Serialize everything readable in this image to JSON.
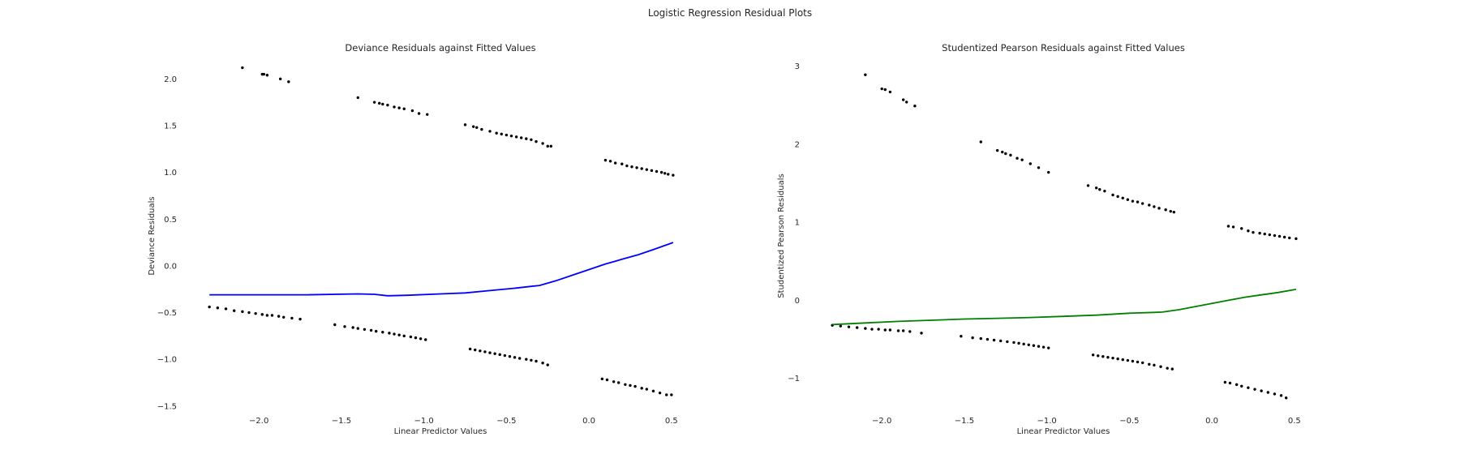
{
  "suptitle": "Logistic Regression Residual Plots",
  "chart_data": [
    {
      "type": "scatter",
      "title": "Deviance Residuals against Fitted Values",
      "xlabel": "Linear Predictor Values",
      "ylabel": "Deviance Residuals",
      "xlim": [
        -2.35,
        0.55
      ],
      "ylim": [
        -1.58,
        2.22
      ],
      "xticks": [
        -2.0,
        -1.5,
        -1.0,
        -0.5,
        0.0,
        0.5
      ],
      "xticklabels": [
        "−2.0",
        "−1.5",
        "−1.0",
        "−0.5",
        "0.0",
        "0.5"
      ],
      "yticks": [
        -1.5,
        -1.0,
        -0.5,
        0.0,
        0.5,
        1.0,
        1.5,
        2.0
      ],
      "yticklabels": [
        "−1.5",
        "−1.0",
        "−0.5",
        "0.0",
        "0.5",
        "1.0",
        "1.5",
        "2.0"
      ],
      "grid": false,
      "point_color": "#000000",
      "line_color": "#0000ff",
      "points": [
        [
          -2.1,
          2.12
        ],
        [
          -1.98,
          2.05
        ],
        [
          -1.97,
          2.05
        ],
        [
          -1.95,
          2.04
        ],
        [
          -1.87,
          2.0
        ],
        [
          -1.82,
          1.97
        ],
        [
          -1.4,
          1.8
        ],
        [
          -1.3,
          1.75
        ],
        [
          -1.27,
          1.74
        ],
        [
          -1.25,
          1.73
        ],
        [
          -1.22,
          1.72
        ],
        [
          -1.18,
          1.7
        ],
        [
          -1.15,
          1.69
        ],
        [
          -1.12,
          1.68
        ],
        [
          -1.07,
          1.66
        ],
        [
          -1.03,
          1.63
        ],
        [
          -0.98,
          1.62
        ],
        [
          -0.75,
          1.51
        ],
        [
          -0.7,
          1.49
        ],
        [
          -0.68,
          1.48
        ],
        [
          -0.65,
          1.46
        ],
        [
          -0.6,
          1.44
        ],
        [
          -0.56,
          1.42
        ],
        [
          -0.53,
          1.41
        ],
        [
          -0.5,
          1.4
        ],
        [
          -0.47,
          1.39
        ],
        [
          -0.44,
          1.38
        ],
        [
          -0.41,
          1.37
        ],
        [
          -0.38,
          1.36
        ],
        [
          -0.35,
          1.35
        ],
        [
          -0.32,
          1.33
        ],
        [
          -0.28,
          1.31
        ],
        [
          -0.25,
          1.28
        ],
        [
          -0.23,
          1.28
        ],
        [
          0.1,
          1.13
        ],
        [
          0.13,
          1.12
        ],
        [
          0.16,
          1.1
        ],
        [
          0.2,
          1.09
        ],
        [
          0.23,
          1.07
        ],
        [
          0.26,
          1.06
        ],
        [
          0.29,
          1.05
        ],
        [
          0.32,
          1.04
        ],
        [
          0.35,
          1.03
        ],
        [
          0.38,
          1.02
        ],
        [
          0.41,
          1.01
        ],
        [
          0.44,
          1.0
        ],
        [
          0.46,
          0.99
        ],
        [
          0.48,
          0.98
        ],
        [
          0.51,
          0.97
        ],
        [
          -2.3,
          -0.44
        ],
        [
          -2.25,
          -0.45
        ],
        [
          -2.2,
          -0.46
        ],
        [
          -2.15,
          -0.48
        ],
        [
          -2.1,
          -0.49
        ],
        [
          -2.06,
          -0.5
        ],
        [
          -2.02,
          -0.51
        ],
        [
          -1.98,
          -0.52
        ],
        [
          -1.95,
          -0.53
        ],
        [
          -1.92,
          -0.53
        ],
        [
          -1.88,
          -0.54
        ],
        [
          -1.85,
          -0.55
        ],
        [
          -1.8,
          -0.56
        ],
        [
          -1.75,
          -0.57
        ],
        [
          -1.54,
          -0.63
        ],
        [
          -1.48,
          -0.65
        ],
        [
          -1.43,
          -0.66
        ],
        [
          -1.4,
          -0.67
        ],
        [
          -1.36,
          -0.68
        ],
        [
          -1.32,
          -0.69
        ],
        [
          -1.29,
          -0.7
        ],
        [
          -1.25,
          -0.71
        ],
        [
          -1.21,
          -0.72
        ],
        [
          -1.18,
          -0.73
        ],
        [
          -1.15,
          -0.74
        ],
        [
          -1.12,
          -0.75
        ],
        [
          -1.08,
          -0.76
        ],
        [
          -1.05,
          -0.77
        ],
        [
          -1.02,
          -0.78
        ],
        [
          -0.99,
          -0.79
        ],
        [
          -0.72,
          -0.89
        ],
        [
          -0.69,
          -0.9
        ],
        [
          -0.66,
          -0.91
        ],
        [
          -0.63,
          -0.92
        ],
        [
          -0.6,
          -0.93
        ],
        [
          -0.57,
          -0.94
        ],
        [
          -0.54,
          -0.95
        ],
        [
          -0.51,
          -0.96
        ],
        [
          -0.48,
          -0.97
        ],
        [
          -0.45,
          -0.98
        ],
        [
          -0.42,
          -0.99
        ],
        [
          -0.38,
          -1.0
        ],
        [
          -0.35,
          -1.01
        ],
        [
          -0.32,
          -1.02
        ],
        [
          -0.28,
          -1.04
        ],
        [
          -0.25,
          -1.06
        ],
        [
          0.08,
          -1.21
        ],
        [
          0.11,
          -1.22
        ],
        [
          0.15,
          -1.24
        ],
        [
          0.18,
          -1.25
        ],
        [
          0.22,
          -1.27
        ],
        [
          0.25,
          -1.28
        ],
        [
          0.28,
          -1.29
        ],
        [
          0.32,
          -1.31
        ],
        [
          0.35,
          -1.32
        ],
        [
          0.39,
          -1.34
        ],
        [
          0.43,
          -1.36
        ],
        [
          0.47,
          -1.38
        ],
        [
          0.5,
          -1.38
        ]
      ],
      "smooth_line": [
        [
          -2.3,
          -0.31
        ],
        [
          -2.0,
          -0.31
        ],
        [
          -1.7,
          -0.31
        ],
        [
          -1.4,
          -0.3
        ],
        [
          -1.3,
          -0.305
        ],
        [
          -1.22,
          -0.32
        ],
        [
          -1.1,
          -0.315
        ],
        [
          -0.9,
          -0.3
        ],
        [
          -0.75,
          -0.29
        ],
        [
          -0.6,
          -0.265
        ],
        [
          -0.45,
          -0.24
        ],
        [
          -0.35,
          -0.22
        ],
        [
          -0.3,
          -0.21
        ],
        [
          -0.2,
          -0.16
        ],
        [
          -0.1,
          -0.1
        ],
        [
          0.0,
          -0.04
        ],
        [
          0.1,
          0.02
        ],
        [
          0.2,
          0.07
        ],
        [
          0.3,
          0.12
        ],
        [
          0.4,
          0.18
        ],
        [
          0.51,
          0.25
        ]
      ]
    },
    {
      "type": "scatter",
      "title": "Studentized Pearson Residuals against Fitted Values",
      "xlabel": "Linear Predictor Values",
      "ylabel": "Studentized Pearson Residuals",
      "xlim": [
        -2.35,
        0.55
      ],
      "ylim": [
        -1.45,
        3.1
      ],
      "xticks": [
        -2.0,
        -1.5,
        -1.0,
        -0.5,
        0.0,
        0.5
      ],
      "xticklabels": [
        "−2.0",
        "−1.5",
        "−1.0",
        "−0.5",
        "0.0",
        "0.5"
      ],
      "yticks": [
        -1,
        0,
        1,
        2,
        3
      ],
      "yticklabels": [
        "−1",
        "0",
        "1",
        "2",
        "3"
      ],
      "grid": false,
      "point_color": "#000000",
      "line_color": "#008000",
      "points": [
        [
          -2.1,
          2.89
        ],
        [
          -2.0,
          2.71
        ],
        [
          -1.98,
          2.7
        ],
        [
          -1.95,
          2.67
        ],
        [
          -1.87,
          2.57
        ],
        [
          -1.85,
          2.54
        ],
        [
          -1.8,
          2.49
        ],
        [
          -1.4,
          2.03
        ],
        [
          -1.3,
          1.92
        ],
        [
          -1.27,
          1.9
        ],
        [
          -1.25,
          1.88
        ],
        [
          -1.22,
          1.86
        ],
        [
          -1.18,
          1.82
        ],
        [
          -1.15,
          1.8
        ],
        [
          -1.1,
          1.75
        ],
        [
          -1.05,
          1.7
        ],
        [
          -0.99,
          1.64
        ],
        [
          -0.75,
          1.47
        ],
        [
          -0.7,
          1.44
        ],
        [
          -0.68,
          1.42
        ],
        [
          -0.65,
          1.4
        ],
        [
          -0.6,
          1.35
        ],
        [
          -0.57,
          1.33
        ],
        [
          -0.54,
          1.31
        ],
        [
          -0.51,
          1.29
        ],
        [
          -0.48,
          1.27
        ],
        [
          -0.45,
          1.26
        ],
        [
          -0.42,
          1.24
        ],
        [
          -0.38,
          1.22
        ],
        [
          -0.35,
          1.2
        ],
        [
          -0.32,
          1.18
        ],
        [
          -0.28,
          1.16
        ],
        [
          -0.25,
          1.14
        ],
        [
          -0.23,
          1.13
        ],
        [
          0.1,
          0.95
        ],
        [
          0.13,
          0.94
        ],
        [
          0.18,
          0.92
        ],
        [
          0.22,
          0.89
        ],
        [
          0.25,
          0.87
        ],
        [
          0.29,
          0.86
        ],
        [
          0.32,
          0.85
        ],
        [
          0.35,
          0.84
        ],
        [
          0.38,
          0.83
        ],
        [
          0.41,
          0.82
        ],
        [
          0.44,
          0.81
        ],
        [
          0.47,
          0.8
        ],
        [
          0.51,
          0.79
        ],
        [
          -2.3,
          -0.32
        ],
        [
          -2.25,
          -0.33
        ],
        [
          -2.2,
          -0.34
        ],
        [
          -2.15,
          -0.35
        ],
        [
          -2.1,
          -0.36
        ],
        [
          -2.06,
          -0.37
        ],
        [
          -2.02,
          -0.37
        ],
        [
          -1.98,
          -0.38
        ],
        [
          -1.95,
          -0.38
        ],
        [
          -1.9,
          -0.39
        ],
        [
          -1.87,
          -0.39
        ],
        [
          -1.83,
          -0.4
        ],
        [
          -1.76,
          -0.42
        ],
        [
          -1.52,
          -0.46
        ],
        [
          -1.45,
          -0.48
        ],
        [
          -1.4,
          -0.49
        ],
        [
          -1.36,
          -0.5
        ],
        [
          -1.32,
          -0.51
        ],
        [
          -1.28,
          -0.52
        ],
        [
          -1.24,
          -0.53
        ],
        [
          -1.2,
          -0.54
        ],
        [
          -1.17,
          -0.55
        ],
        [
          -1.14,
          -0.56
        ],
        [
          -1.11,
          -0.57
        ],
        [
          -1.08,
          -0.58
        ],
        [
          -1.05,
          -0.59
        ],
        [
          -1.02,
          -0.6
        ],
        [
          -0.99,
          -0.61
        ],
        [
          -0.72,
          -0.7
        ],
        [
          -0.69,
          -0.71
        ],
        [
          -0.66,
          -0.72
        ],
        [
          -0.63,
          -0.73
        ],
        [
          -0.6,
          -0.74
        ],
        [
          -0.57,
          -0.75
        ],
        [
          -0.54,
          -0.76
        ],
        [
          -0.51,
          -0.77
        ],
        [
          -0.48,
          -0.78
        ],
        [
          -0.45,
          -0.79
        ],
        [
          -0.42,
          -0.8
        ],
        [
          -0.38,
          -0.82
        ],
        [
          -0.35,
          -0.83
        ],
        [
          -0.31,
          -0.85
        ],
        [
          -0.27,
          -0.87
        ],
        [
          -0.24,
          -0.88
        ],
        [
          0.08,
          -1.05
        ],
        [
          0.11,
          -1.06
        ],
        [
          0.15,
          -1.08
        ],
        [
          0.18,
          -1.1
        ],
        [
          0.22,
          -1.12
        ],
        [
          0.26,
          -1.14
        ],
        [
          0.3,
          -1.16
        ],
        [
          0.34,
          -1.18
        ],
        [
          0.38,
          -1.2
        ],
        [
          0.42,
          -1.22
        ],
        [
          0.45,
          -1.25
        ]
      ],
      "smooth_line": [
        [
          -2.3,
          -0.31
        ],
        [
          -2.1,
          -0.29
        ],
        [
          -1.9,
          -0.27
        ],
        [
          -1.7,
          -0.255
        ],
        [
          -1.5,
          -0.24
        ],
        [
          -1.3,
          -0.23
        ],
        [
          -1.1,
          -0.22
        ],
        [
          -0.9,
          -0.205
        ],
        [
          -0.7,
          -0.19
        ],
        [
          -0.5,
          -0.165
        ],
        [
          -0.35,
          -0.155
        ],
        [
          -0.3,
          -0.15
        ],
        [
          -0.2,
          -0.12
        ],
        [
          -0.1,
          -0.08
        ],
        [
          0.0,
          -0.04
        ],
        [
          0.1,
          0.0
        ],
        [
          0.2,
          0.04
        ],
        [
          0.3,
          0.07
        ],
        [
          0.4,
          0.1
        ],
        [
          0.51,
          0.14
        ]
      ]
    }
  ]
}
